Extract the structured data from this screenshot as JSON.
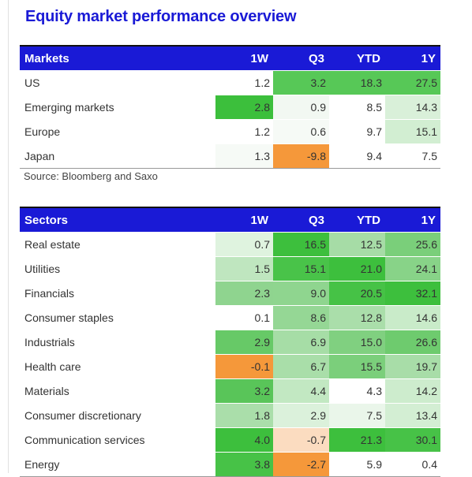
{
  "title": "Equity market performance overview",
  "markets": {
    "headers": [
      "Markets",
      "1W",
      "Q3",
      "YTD",
      "1Y"
    ],
    "rows": [
      {
        "name": "US",
        "cells": [
          {
            "v": "1.2",
            "bg": "#ffffff"
          },
          {
            "v": "3.2",
            "bg": "#57c857"
          },
          {
            "v": "18.3",
            "bg": "#57c857"
          },
          {
            "v": "27.5",
            "bg": "#57c857"
          }
        ]
      },
      {
        "name": "Emerging markets",
        "cells": [
          {
            "v": "2.8",
            "bg": "#3cbf3c"
          },
          {
            "v": "0.9",
            "bg": "#f2f8f2"
          },
          {
            "v": "8.5",
            "bg": "#ffffff"
          },
          {
            "v": "14.3",
            "bg": "#d9f0d9"
          }
        ]
      },
      {
        "name": "Europe",
        "cells": [
          {
            "v": "1.2",
            "bg": "#ffffff"
          },
          {
            "v": "0.6",
            "bg": "#f6faf6"
          },
          {
            "v": "9.7",
            "bg": "#ffffff"
          },
          {
            "v": "15.1",
            "bg": "#d2eed2"
          }
        ]
      },
      {
        "name": "Japan",
        "cells": [
          {
            "v": "1.3",
            "bg": "#f6faf6"
          },
          {
            "v": "-9.8",
            "bg": "#f5983a"
          },
          {
            "v": "9.4",
            "bg": "#ffffff"
          },
          {
            "v": "7.5",
            "bg": "#ffffff"
          }
        ]
      }
    ]
  },
  "source": "Source: Bloomberg and Saxo",
  "sectors": {
    "headers": [
      "Sectors",
      "1W",
      "Q3",
      "YTD",
      "1Y"
    ],
    "rows": [
      {
        "name": "Real estate",
        "cells": [
          {
            "v": "0.7",
            "bg": "#dff3df"
          },
          {
            "v": "16.5",
            "bg": "#3dbf3d"
          },
          {
            "v": "12.5",
            "bg": "#a6dca6"
          },
          {
            "v": "25.6",
            "bg": "#7acf7a"
          }
        ]
      },
      {
        "name": "Utilities",
        "cells": [
          {
            "v": "1.5",
            "bg": "#bfe6bf"
          },
          {
            "v": "15.1",
            "bg": "#49c349"
          },
          {
            "v": "21.0",
            "bg": "#3dbf3d"
          },
          {
            "v": "24.1",
            "bg": "#88d388"
          }
        ]
      },
      {
        "name": "Financials",
        "cells": [
          {
            "v": "2.3",
            "bg": "#8fd48f"
          },
          {
            "v": "9.0",
            "bg": "#8fd58f"
          },
          {
            "v": "20.5",
            "bg": "#46c246"
          },
          {
            "v": "32.1",
            "bg": "#3dbf3d"
          }
        ]
      },
      {
        "name": "Consumer staples",
        "cells": [
          {
            "v": "0.1",
            "bg": "#ffffff"
          },
          {
            "v": "8.6",
            "bg": "#95d795"
          },
          {
            "v": "12.8",
            "bg": "#aadeaa"
          },
          {
            "v": "14.6",
            "bg": "#c9ebc9"
          }
        ]
      },
      {
        "name": "Industrials",
        "cells": [
          {
            "v": "2.9",
            "bg": "#67c967"
          },
          {
            "v": "6.9",
            "bg": "#a6dda6"
          },
          {
            "v": "15.0",
            "bg": "#80d080"
          },
          {
            "v": "26.6",
            "bg": "#6ecb6e"
          }
        ]
      },
      {
        "name": "Health care",
        "cells": [
          {
            "v": "-0.1",
            "bg": "#f5983a"
          },
          {
            "v": "6.7",
            "bg": "#a9dea9"
          },
          {
            "v": "15.5",
            "bg": "#7bcf7b"
          },
          {
            "v": "19.7",
            "bg": "#a8dda8"
          }
        ]
      },
      {
        "name": "Materials",
        "cells": [
          {
            "v": "3.2",
            "bg": "#59c559"
          },
          {
            "v": "4.4",
            "bg": "#c2e8c2"
          },
          {
            "v": "4.3",
            "bg": "#ffffff"
          },
          {
            "v": "14.2",
            "bg": "#cdeccd"
          }
        ]
      },
      {
        "name": "Consumer discretionary",
        "cells": [
          {
            "v": "1.8",
            "bg": "#aadeaa"
          },
          {
            "v": "2.9",
            "bg": "#dbf1db"
          },
          {
            "v": "7.5",
            "bg": "#eaf6ea"
          },
          {
            "v": "13.4",
            "bg": "#d3eed3"
          }
        ]
      },
      {
        "name": "Communication services",
        "cells": [
          {
            "v": "4.0",
            "bg": "#3dbf3d"
          },
          {
            "v": "-0.7",
            "bg": "#fbdcc0"
          },
          {
            "v": "21.3",
            "bg": "#3dbf3d"
          },
          {
            "v": "30.1",
            "bg": "#47c247"
          }
        ]
      },
      {
        "name": "Energy",
        "cells": [
          {
            "v": "3.8",
            "bg": "#47c247"
          },
          {
            "v": "-2.7",
            "bg": "#f5983a"
          },
          {
            "v": "5.9",
            "bg": "#ffffff"
          },
          {
            "v": "0.4",
            "bg": "#ffffff"
          }
        ]
      }
    ]
  }
}
